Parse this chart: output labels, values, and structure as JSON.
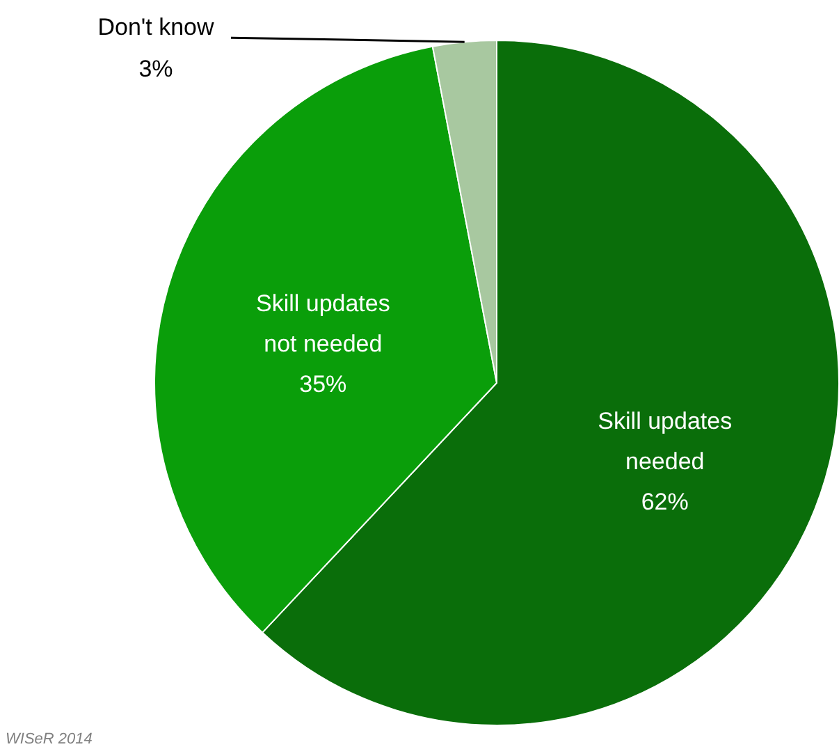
{
  "chart_data": {
    "type": "pie",
    "categories": [
      "Skill updates needed",
      "Skill updates not needed",
      "Don't know"
    ],
    "values": [
      62,
      35,
      3
    ],
    "colors": [
      "#0a6e0a",
      "#0a9e0a",
      "#a8c8a0"
    ],
    "value_labels": [
      "62%",
      "35%",
      "3%"
    ],
    "annotations": [
      "WISeR 2014"
    ]
  }
}
